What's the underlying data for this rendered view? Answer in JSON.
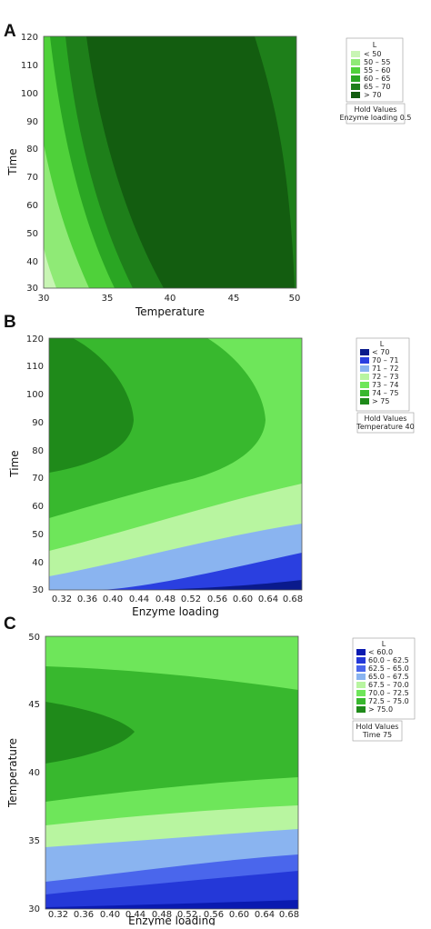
{
  "chart_data": [
    {
      "type": "contour",
      "panel_label": "A",
      "xlabel": "Temperature",
      "ylabel": "Time",
      "xlim": [
        30,
        50
      ],
      "ylim": [
        30,
        120
      ],
      "xticks": [
        "30",
        "35",
        "40",
        "45",
        "50"
      ],
      "yticks": [
        "30",
        "40",
        "50",
        "60",
        "70",
        "80",
        "90",
        "100",
        "110",
        "120"
      ],
      "response": "L",
      "legend": [
        {
          "label": "< 50",
          "color": "#c8f5b4"
        },
        {
          "label": "50 – 55",
          "color": "#8fea76"
        },
        {
          "label": "55 – 60",
          "color": "#4fd13a"
        },
        {
          "label": "60 – 65",
          "color": "#2aa623"
        },
        {
          "label": "65 – 70",
          "color": "#1e7f1a"
        },
        {
          "label": "> 70",
          "color": "#135d10"
        }
      ],
      "hold_values": {
        "title": "Hold Values",
        "line": "Enzyme loading  0.5"
      }
    },
    {
      "type": "contour",
      "panel_label": "B",
      "xlabel": "Enzyme loading",
      "ylabel": "Time",
      "xlim": [
        0.3,
        0.69
      ],
      "ylim": [
        30,
        120
      ],
      "xticks": [
        "0.32",
        "0.36",
        "0.40",
        "0.44",
        "0.48",
        "0.52",
        "0.56",
        "0.60",
        "0.64",
        "0.68"
      ],
      "yticks": [
        "30",
        "40",
        "50",
        "60",
        "70",
        "80",
        "90",
        "100",
        "110",
        "120"
      ],
      "response": "L",
      "legend": [
        {
          "label": "< 70",
          "color": "#0a1a8c"
        },
        {
          "label": "70 – 71",
          "color": "#2a3fe0"
        },
        {
          "label": "71 – 72",
          "color": "#8ab4f0"
        },
        {
          "label": "72 – 73",
          "color": "#b8f5a0"
        },
        {
          "label": "73 – 74",
          "color": "#6ee65a"
        },
        {
          "label": "74 – 75",
          "color": "#38b82e"
        },
        {
          "label": "> 75",
          "color": "#1f8a1a"
        }
      ],
      "hold_values": {
        "title": "Hold Values",
        "line": "Temperature  40"
      }
    },
    {
      "type": "contour",
      "panel_label": "C",
      "xlabel": "Enzyme loading",
      "ylabel": "Temperature",
      "xlim": [
        0.3,
        0.69
      ],
      "ylim": [
        30,
        50
      ],
      "xticks": [
        "0.32",
        "0.36",
        "0.40",
        "0.44",
        "0.48",
        "0.52",
        "0.56",
        "0.60",
        "0.64",
        "0.68"
      ],
      "yticks": [
        "30",
        "35",
        "40",
        "45",
        "50"
      ],
      "response": "L",
      "legend": [
        {
          "label": "< 60.0",
          "color": "#0a1ab0"
        },
        {
          "label": "60.0 – 62.5",
          "color": "#2438d8"
        },
        {
          "label": "62.5 – 65.0",
          "color": "#4a66ec"
        },
        {
          "label": "65.0 – 67.5",
          "color": "#8ab4f0"
        },
        {
          "label": "67.5 – 70.0",
          "color": "#b8f5a0"
        },
        {
          "label": "70.0 – 72.5",
          "color": "#6ee65a"
        },
        {
          "label": "72.5 – 75.0",
          "color": "#38b82e"
        },
        {
          "label": "> 75.0",
          "color": "#1f8a1a"
        }
      ],
      "hold_values": {
        "title": "Hold Values",
        "line": "Time  75"
      }
    }
  ]
}
